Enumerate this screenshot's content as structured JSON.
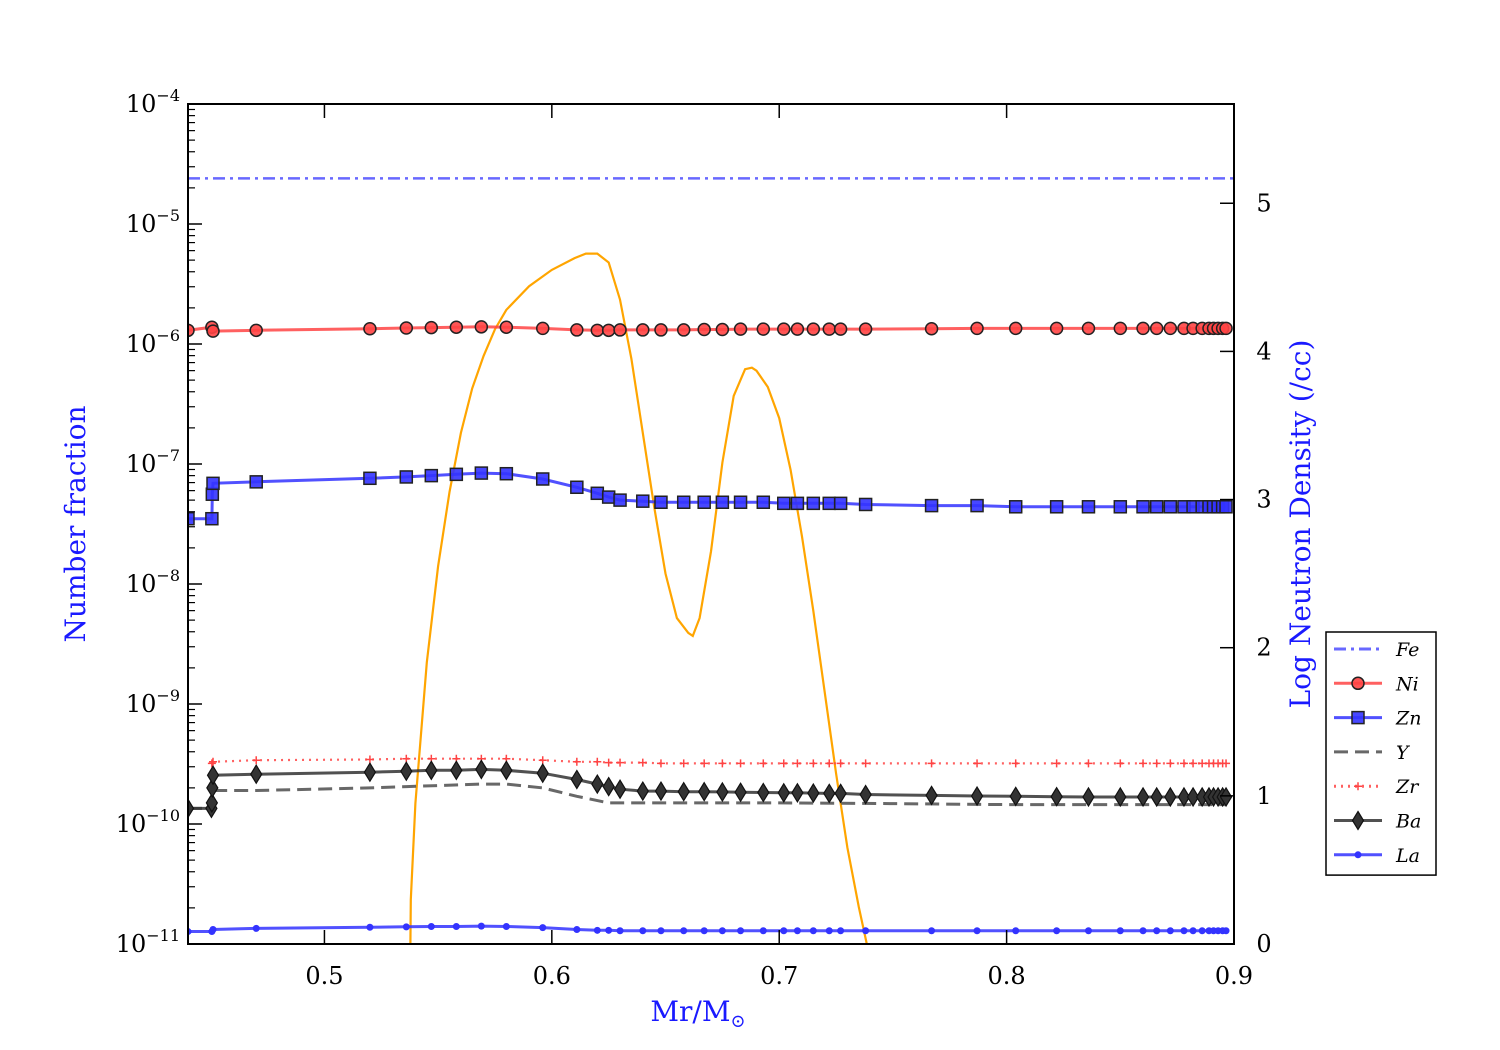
{
  "chart_data": {
    "type": "line",
    "xlabel": "Mr/M",
    "xlabel_symbol": "⊙",
    "ylabel_left": "Number fraction",
    "ylabel_right": "Log Neutron Density (/cc)",
    "xlim": [
      0.44,
      0.9
    ],
    "xticks": [
      "0.5",
      "0.6",
      "0.7",
      "0.8",
      "0.9"
    ],
    "y_left_scale": "log",
    "y_left_lim": [
      1e-11,
      0.0001
    ],
    "y_left_ticks": [
      {
        "base": "10",
        "exp": "−4",
        "value": 0.0001
      },
      {
        "base": "10",
        "exp": "−5",
        "value": 1e-05
      },
      {
        "base": "10",
        "exp": "−6",
        "value": 1e-06
      },
      {
        "base": "10",
        "exp": "−7",
        "value": 1e-07
      },
      {
        "base": "10",
        "exp": "−8",
        "value": 1e-08
      },
      {
        "base": "10",
        "exp": "−9",
        "value": 1e-09
      },
      {
        "base": "10",
        "exp": "−10",
        "value": 1e-10
      },
      {
        "base": "10",
        "exp": "−11",
        "value": 1e-11
      }
    ],
    "y_right_lim": [
      0,
      5.67
    ],
    "y_right_ticks": [
      "0",
      "1",
      "2",
      "3",
      "4",
      "5"
    ],
    "legend_position": "center-right outside",
    "grid": false,
    "series": [
      {
        "name": "Fe",
        "color": "#4d4dff",
        "style": "dashdot",
        "marker": "none",
        "axis": "left",
        "x": [
          0.44,
          0.9
        ],
        "y": [
          2.4e-05,
          2.4e-05
        ]
      },
      {
        "name": "Ni",
        "color": "#ff4444",
        "style": "solid",
        "marker": "circle",
        "axis": "left",
        "x": [
          0.44,
          0.4505,
          0.451,
          0.47,
          0.52,
          0.536,
          0.547,
          0.558,
          0.569,
          0.58,
          0.596,
          0.611,
          0.62,
          0.625,
          0.63,
          0.64,
          0.648,
          0.658,
          0.667,
          0.675,
          0.683,
          0.693,
          0.702,
          0.708,
          0.715,
          0.722,
          0.727,
          0.738,
          0.767,
          0.787,
          0.804,
          0.822,
          0.836,
          0.85,
          0.86,
          0.866,
          0.872,
          0.878,
          0.882,
          0.886,
          0.889,
          0.891,
          0.893,
          0.895,
          0.8965
        ],
        "y": [
          1.3e-06,
          1.38e-06,
          1.28e-06,
          1.3e-06,
          1.34e-06,
          1.36e-06,
          1.37e-06,
          1.38e-06,
          1.39e-06,
          1.38e-06,
          1.35e-06,
          1.31e-06,
          1.3e-06,
          1.3e-06,
          1.31e-06,
          1.31e-06,
          1.31e-06,
          1.31e-06,
          1.32e-06,
          1.32e-06,
          1.33e-06,
          1.33e-06,
          1.33e-06,
          1.33e-06,
          1.33e-06,
          1.33e-06,
          1.33e-06,
          1.33e-06,
          1.34e-06,
          1.35e-06,
          1.35e-06,
          1.35e-06,
          1.35e-06,
          1.35e-06,
          1.35e-06,
          1.35e-06,
          1.35e-06,
          1.35e-06,
          1.35e-06,
          1.35e-06,
          1.35e-06,
          1.35e-06,
          1.35e-06,
          1.35e-06,
          1.35e-06
        ]
      },
      {
        "name": "Zn",
        "color": "#3333ff",
        "style": "solid",
        "marker": "square",
        "axis": "left",
        "x": [
          0.44,
          0.4505,
          0.4507,
          0.451,
          0.47,
          0.52,
          0.536,
          0.547,
          0.558,
          0.569,
          0.58,
          0.596,
          0.611,
          0.62,
          0.625,
          0.63,
          0.64,
          0.648,
          0.658,
          0.667,
          0.675,
          0.683,
          0.693,
          0.702,
          0.708,
          0.715,
          0.722,
          0.727,
          0.738,
          0.767,
          0.787,
          0.804,
          0.822,
          0.836,
          0.85,
          0.86,
          0.866,
          0.872,
          0.878,
          0.882,
          0.886,
          0.889,
          0.891,
          0.893,
          0.895,
          0.8965
        ],
        "y": [
          3.5e-08,
          3.5e-08,
          5.6e-08,
          6.9e-08,
          7.1e-08,
          7.6e-08,
          7.8e-08,
          8e-08,
          8.2e-08,
          8.4e-08,
          8.3e-08,
          7.5e-08,
          6.4e-08,
          5.7e-08,
          5.3e-08,
          5e-08,
          4.9e-08,
          4.8e-08,
          4.8e-08,
          4.8e-08,
          4.8e-08,
          4.8e-08,
          4.8e-08,
          4.7e-08,
          4.7e-08,
          4.7e-08,
          4.7e-08,
          4.7e-08,
          4.6e-08,
          4.5e-08,
          4.5e-08,
          4.4e-08,
          4.4e-08,
          4.4e-08,
          4.4e-08,
          4.4e-08,
          4.4e-08,
          4.4e-08,
          4.4e-08,
          4.4e-08,
          4.4e-08,
          4.4e-08,
          4.4e-08,
          4.4e-08,
          4.4e-08,
          4.4e-08
        ]
      },
      {
        "name": "Y",
        "color": "#4d4d4d",
        "style": "dashed",
        "marker": "none",
        "axis": "left",
        "x": [
          0.44,
          0.4505,
          0.451,
          0.47,
          0.52,
          0.536,
          0.569,
          0.58,
          0.596,
          0.611,
          0.625,
          0.64,
          0.7,
          0.75,
          0.8,
          0.85,
          0.8965
        ],
        "y": [
          1.35e-10,
          1.35e-10,
          1.9e-10,
          1.9e-10,
          2e-10,
          2.05e-10,
          2.15e-10,
          2.15e-10,
          2e-10,
          1.7e-10,
          1.5e-10,
          1.5e-10,
          1.5e-10,
          1.48e-10,
          1.45e-10,
          1.45e-10,
          1.45e-10
        ]
      },
      {
        "name": "Zr",
        "color": "#ff4444",
        "style": "dotted",
        "marker": "plus",
        "axis": "left",
        "x": [
          0.4505,
          0.451,
          0.47,
          0.52,
          0.536,
          0.547,
          0.558,
          0.569,
          0.58,
          0.596,
          0.611,
          0.62,
          0.625,
          0.63,
          0.64,
          0.648,
          0.658,
          0.667,
          0.675,
          0.683,
          0.693,
          0.702,
          0.708,
          0.715,
          0.722,
          0.727,
          0.738,
          0.767,
          0.787,
          0.804,
          0.822,
          0.836,
          0.85,
          0.86,
          0.866,
          0.872,
          0.878,
          0.882,
          0.886,
          0.889,
          0.891,
          0.893,
          0.895,
          0.8965
        ],
        "y": [
          3.2e-10,
          3.3e-10,
          3.4e-10,
          3.45e-10,
          3.5e-10,
          3.5e-10,
          3.5e-10,
          3.5e-10,
          3.5e-10,
          3.4e-10,
          3.3e-10,
          3.3e-10,
          3.25e-10,
          3.25e-10,
          3.25e-10,
          3.2e-10,
          3.2e-10,
          3.2e-10,
          3.2e-10,
          3.2e-10,
          3.2e-10,
          3.2e-10,
          3.2e-10,
          3.2e-10,
          3.2e-10,
          3.2e-10,
          3.2e-10,
          3.2e-10,
          3.2e-10,
          3.2e-10,
          3.2e-10,
          3.2e-10,
          3.2e-10,
          3.2e-10,
          3.2e-10,
          3.2e-10,
          3.2e-10,
          3.2e-10,
          3.2e-10,
          3.2e-10,
          3.2e-10,
          3.2e-10,
          3.2e-10,
          3.2e-10
        ]
      },
      {
        "name": "Ba",
        "color": "#333333",
        "style": "solid",
        "marker": "diamond",
        "axis": "left",
        "x": [
          0.44,
          0.4503,
          0.4505,
          0.4507,
          0.451,
          0.47,
          0.52,
          0.536,
          0.547,
          0.558,
          0.569,
          0.58,
          0.596,
          0.611,
          0.62,
          0.625,
          0.63,
          0.64,
          0.648,
          0.658,
          0.667,
          0.675,
          0.683,
          0.693,
          0.702,
          0.708,
          0.715,
          0.722,
          0.727,
          0.738,
          0.767,
          0.787,
          0.804,
          0.822,
          0.836,
          0.85,
          0.86,
          0.866,
          0.872,
          0.878,
          0.882,
          0.886,
          0.889,
          0.891,
          0.893,
          0.895,
          0.8965
        ],
        "y": [
          1.35e-10,
          1.35e-10,
          1.5e-10,
          2e-10,
          2.55e-10,
          2.6e-10,
          2.7e-10,
          2.75e-10,
          2.8e-10,
          2.8e-10,
          2.85e-10,
          2.8e-10,
          2.65e-10,
          2.35e-10,
          2.15e-10,
          2.05e-10,
          1.95e-10,
          1.88e-10,
          1.88e-10,
          1.86e-10,
          1.86e-10,
          1.85e-10,
          1.84e-10,
          1.83e-10,
          1.82e-10,
          1.82e-10,
          1.81e-10,
          1.8e-10,
          1.8e-10,
          1.76e-10,
          1.73e-10,
          1.71e-10,
          1.7e-10,
          1.69e-10,
          1.68e-10,
          1.68e-10,
          1.68e-10,
          1.68e-10,
          1.68e-10,
          1.68e-10,
          1.68e-10,
          1.68e-10,
          1.68e-10,
          1.68e-10,
          1.68e-10,
          1.68e-10,
          1.68e-10
        ]
      },
      {
        "name": "La",
        "color": "#3333ff",
        "style": "solid",
        "marker": "dot",
        "axis": "left",
        "x": [
          0.44,
          0.4505,
          0.451,
          0.47,
          0.52,
          0.536,
          0.547,
          0.558,
          0.569,
          0.58,
          0.596,
          0.611,
          0.62,
          0.625,
          0.63,
          0.64,
          0.648,
          0.658,
          0.667,
          0.675,
          0.683,
          0.693,
          0.702,
          0.708,
          0.715,
          0.722,
          0.727,
          0.738,
          0.767,
          0.787,
          0.804,
          0.822,
          0.836,
          0.85,
          0.86,
          0.866,
          0.872,
          0.878,
          0.882,
          0.886,
          0.889,
          0.891,
          0.893,
          0.895,
          0.8965
        ],
        "y": [
          1.27e-11,
          1.27e-11,
          1.32e-11,
          1.35e-11,
          1.38e-11,
          1.39e-11,
          1.4e-11,
          1.4e-11,
          1.41e-11,
          1.4e-11,
          1.37e-11,
          1.32e-11,
          1.3e-11,
          1.3e-11,
          1.29e-11,
          1.29e-11,
          1.29e-11,
          1.29e-11,
          1.29e-11,
          1.29e-11,
          1.29e-11,
          1.29e-11,
          1.29e-11,
          1.29e-11,
          1.29e-11,
          1.29e-11,
          1.29e-11,
          1.29e-11,
          1.29e-11,
          1.29e-11,
          1.29e-11,
          1.29e-11,
          1.29e-11,
          1.29e-11,
          1.29e-11,
          1.29e-11,
          1.29e-11,
          1.29e-11,
          1.29e-11,
          1.29e-11,
          1.29e-11,
          1.29e-11,
          1.29e-11,
          1.29e-11,
          1.29e-11
        ]
      }
    ],
    "neutron_density": {
      "color": "#ffa500",
      "axis": "right",
      "x": [
        0.5378,
        0.538,
        0.54,
        0.545,
        0.55,
        0.555,
        0.56,
        0.565,
        0.57,
        0.575,
        0.58,
        0.59,
        0.6,
        0.61,
        0.615,
        0.62,
        0.625,
        0.63,
        0.635,
        0.64,
        0.645,
        0.65,
        0.655,
        0.66,
        0.662,
        0.665,
        0.67,
        0.675,
        0.68,
        0.685,
        0.688,
        0.69,
        0.695,
        0.7,
        0.705,
        0.71,
        0.715,
        0.72,
        0.725,
        0.73,
        0.735,
        0.7385
      ],
      "y": [
        0.0,
        0.3,
        0.95,
        1.9,
        2.55,
        3.05,
        3.45,
        3.75,
        3.97,
        4.15,
        4.28,
        4.44,
        4.55,
        4.63,
        4.66,
        4.66,
        4.6,
        4.35,
        3.95,
        3.45,
        2.95,
        2.5,
        2.2,
        2.1,
        2.08,
        2.2,
        2.65,
        3.25,
        3.7,
        3.88,
        3.89,
        3.87,
        3.76,
        3.55,
        3.2,
        2.75,
        2.25,
        1.7,
        1.15,
        0.65,
        0.25,
        0.0
      ]
    }
  }
}
